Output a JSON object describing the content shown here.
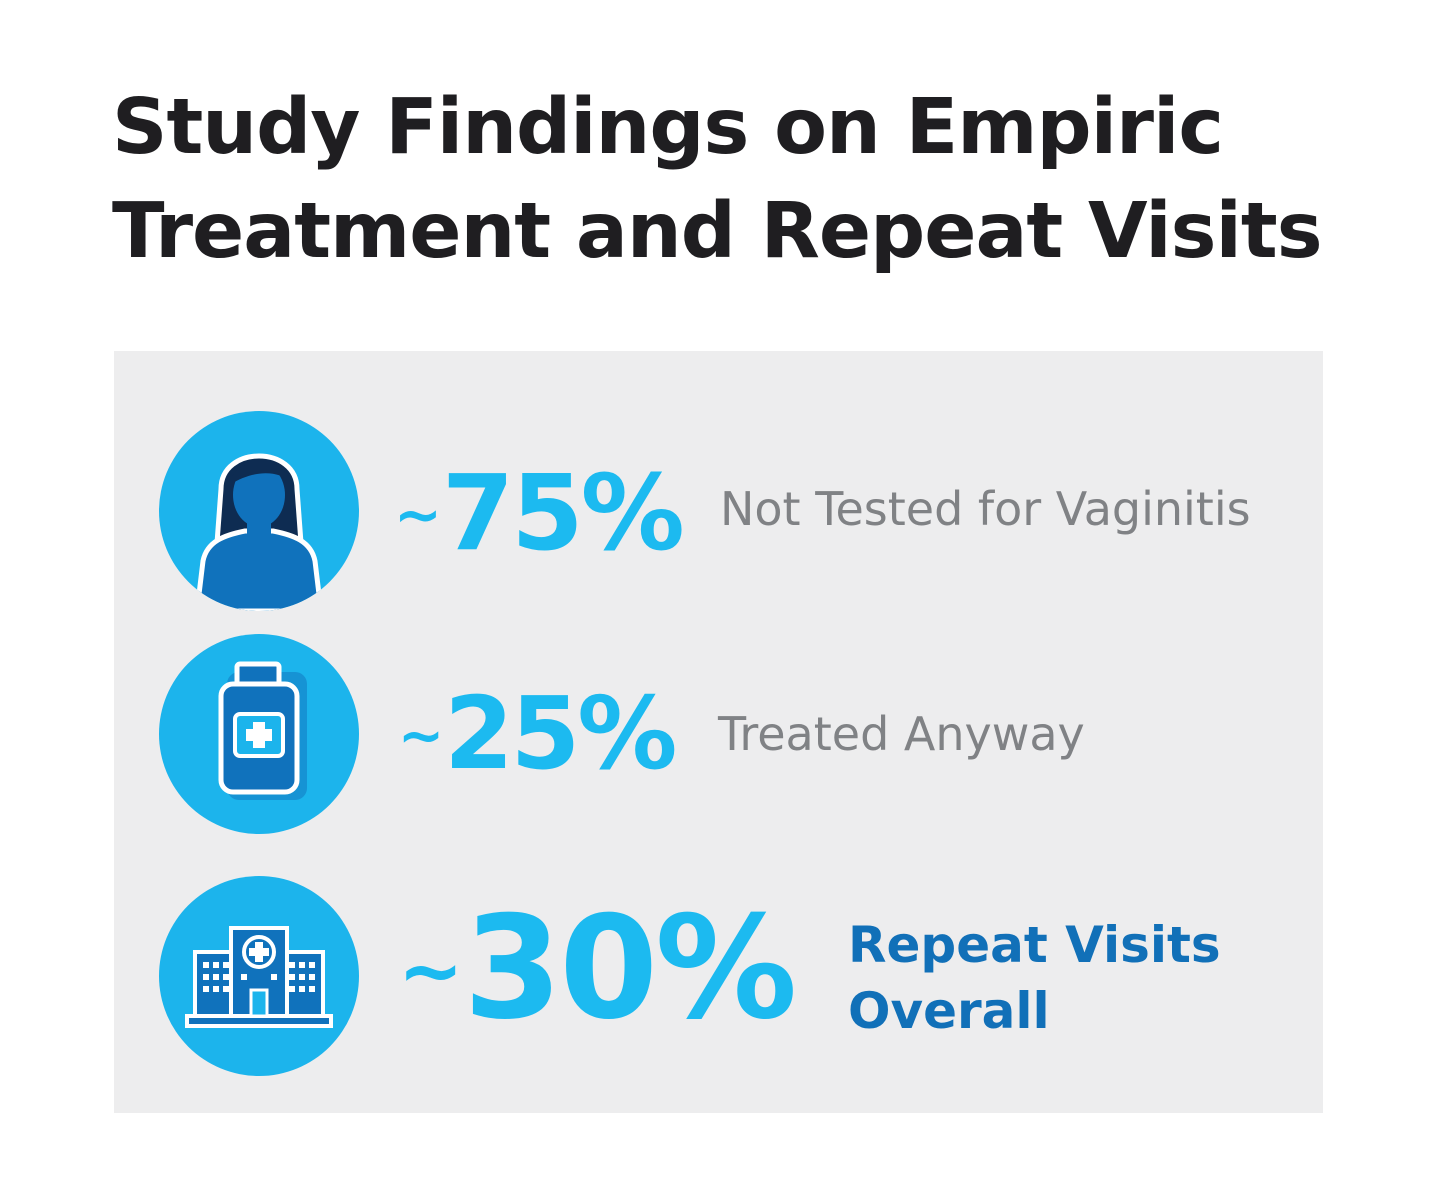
{
  "header": {
    "title_line1": "Study Findings on Empiric",
    "title_line2": "Treatment and Repeat Visits"
  },
  "findings": [
    {
      "icon": "woman-icon",
      "prefix": "~",
      "value": "75%",
      "label": "Not Tested for Vaginitis"
    },
    {
      "icon": "medicine-bottle-icon",
      "prefix": "~",
      "value": "25%",
      "label": "Treated Anyway"
    },
    {
      "icon": "hospital-icon",
      "prefix": "~",
      "value": "30%",
      "label_line1": "Repeat Visits",
      "label_line2": "Overall"
    }
  ],
  "colors": {
    "accent": "#1cbaf0",
    "circle": "#1cb4ec",
    "dark_blue": "#1170b8",
    "panel": "#ededee",
    "gray_text": "#808285",
    "title": "#1f1e21"
  }
}
